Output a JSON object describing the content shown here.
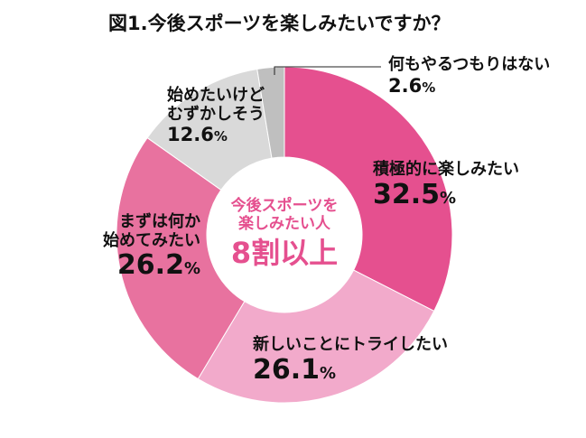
{
  "title": "図1.今後スポーツを楽しみたいですか？",
  "center_text": {
    "line1": "今後スポーツを",
    "line2": "楽しみたい人",
    "line3": "8割以上"
  },
  "labels": [
    {
      "name": "積極的に楽しみたい",
      "value": "32.5",
      "unit": "%"
    },
    {
      "name": "新しいことにトライしたい",
      "value": "26.1",
      "unit": "%"
    },
    {
      "name_line1": "まずは何か",
      "name_line2": "始めてみたい",
      "value": "26.2",
      "unit": "%"
    },
    {
      "name_line1": "始めたいけど",
      "name_line2": "むずかしそう",
      "value": "12.6",
      "unit": "%"
    },
    {
      "name": "何もやるつもりはない",
      "value": "2.6",
      "unit": "%"
    }
  ],
  "colors": {
    "active": "#E5508F",
    "try_new": "#F2AACB",
    "start_something": "#E8729F",
    "difficult": "#D9D9D9",
    "none": "#BFBFBF",
    "center_text": "#E5508F"
  },
  "chart_data": {
    "type": "pie",
    "variant": "donut",
    "title": "図1.今後スポーツを楽しみたいですか？",
    "categories": [
      "積極的に楽しみたい",
      "新しいことにトライしたい",
      "まずは何か始めてみたい",
      "始めたいけどむずかしそう",
      "何もやるつもりはない"
    ],
    "values": [
      32.5,
      26.1,
      26.2,
      12.6,
      2.6
    ],
    "unit": "%",
    "colors": [
      "#E5508F",
      "#F2AACB",
      "#E8729F",
      "#D9D9D9",
      "#BFBFBF"
    ],
    "start_angle": "12 o'clock, clockwise",
    "center_annotation": "今後スポーツを楽しみたい人 8割以上",
    "legend": "none (direct labels)"
  }
}
